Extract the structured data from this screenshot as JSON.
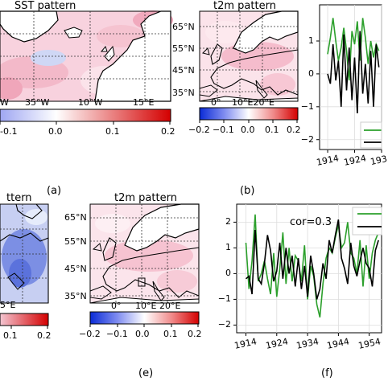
{
  "panels": {
    "a": {
      "title": "SST pattern",
      "lon_ticks": [
        "W",
        "35°W",
        "10°W",
        "15°E"
      ],
      "colorbar_ticks": [
        "-0.1",
        "0.0",
        "0.1",
        "0.2"
      ],
      "letter": "(a)"
    },
    "b": {
      "title": "t2m pattern",
      "lat_ticks": [
        "65°N",
        "55°N",
        "45°N",
        "35°N"
      ],
      "lon_ticks": [
        "0°",
        "10°E20°E"
      ],
      "colorbar_ticks": [
        "−0.2",
        "−0.1",
        "0.0",
        "0.1",
        "0.2"
      ],
      "letter": "(b)"
    },
    "c": {
      "y_ticks": [
        "1",
        "0",
        "−1",
        "−2"
      ],
      "x_ticks": [
        "1914",
        "1924",
        "193"
      ]
    },
    "d": {
      "title": "ttern",
      "lon_ticks": [
        "5°E"
      ],
      "colorbar_ticks": [
        "0.1",
        "0.2"
      ]
    },
    "e": {
      "title": "t2m pattern",
      "lat_ticks": [
        "65°N",
        "55°N",
        "45°N",
        "35°N"
      ],
      "lon_ticks": [
        "0°",
        "10°E 20°E"
      ],
      "colorbar_ticks": [
        "−0.2",
        "−0.1",
        "0.0",
        "0.1",
        "0.2"
      ],
      "letter": "(e)"
    },
    "f": {
      "annotation": "cor=0.3",
      "y_ticks": [
        "2",
        "1",
        "0",
        "−1",
        "−2"
      ],
      "x_ticks": [
        "1914",
        "1924",
        "1934",
        "1944",
        "1954"
      ],
      "letter": "(f)"
    }
  },
  "colors": {
    "series_green": "#2ca02c",
    "series_black": "#000000"
  },
  "chart_data": [
    {
      "type": "line",
      "panel": "c",
      "x": [
        1914,
        1915,
        1916,
        1917,
        1918,
        1919,
        1920,
        1921,
        1922,
        1923,
        1924,
        1925,
        1926,
        1927,
        1928,
        1929,
        1930,
        1931,
        1932,
        1933
      ],
      "xlim": [
        1911,
        1934
      ],
      "ylim": [
        -2.3,
        2.1
      ],
      "series": [
        {
          "color": "#2ca02c",
          "values": [
            0.6,
            1.1,
            1.7,
            1.0,
            0.4,
            0.8,
            1.4,
            0.7,
            -0.2,
            1.3,
            0.9,
            1.6,
            0.4,
            1.7,
            1.1,
            0.3,
            1.0,
            0.5,
            0.9,
            0.7
          ]
        },
        {
          "color": "#000000",
          "values": [
            0.0,
            -0.3,
            0.9,
            -0.2,
            0.4,
            -1.0,
            1.2,
            -0.5,
            0.8,
            -0.8,
            0.5,
            -1.2,
            1.3,
            -0.6,
            0.3,
            -0.9,
            0.7,
            -1.0,
            0.9,
            0.2
          ]
        }
      ]
    },
    {
      "type": "line",
      "panel": "f",
      "x": [
        1914,
        1915,
        1916,
        1917,
        1918,
        1919,
        1920,
        1921,
        1922,
        1923,
        1924,
        1925,
        1926,
        1927,
        1928,
        1929,
        1930,
        1931,
        1932,
        1933,
        1934,
        1935,
        1936,
        1937,
        1938,
        1939,
        1940,
        1941,
        1942,
        1943,
        1944,
        1945,
        1946,
        1947,
        1948,
        1949,
        1950,
        1951,
        1952,
        1953,
        1954,
        1955,
        1956,
        1957
      ],
      "xlim": [
        1911,
        1958
      ],
      "ylim": [
        -2.3,
        2.7
      ],
      "series": [
        {
          "color": "#2ca02c",
          "values": [
            1.2,
            -0.6,
            0.5,
            2.3,
            -0.3,
            0.0,
            0.5,
            -0.2,
            -0.8,
            0.8,
            -0.9,
            0.2,
            1.6,
            -0.4,
            1.0,
            -0.3,
            0.7,
            0.5,
            -0.3,
            1.1,
            -1.0,
            0.3,
            -0.1,
            -1.2,
            -1.7,
            -0.4,
            0.6,
            1.0,
            0.8,
            1.4,
            1.9,
            1.0,
            1.2,
            2.0,
            0.8,
            0.6,
            0.0,
            1.3,
            -0.5,
            1.1,
            -0.2,
            0.8,
            1.3,
            1.6
          ]
        },
        {
          "color": "#000000",
          "values": [
            -0.2,
            -0.1,
            -0.8,
            1.7,
            -0.2,
            -0.4,
            0.4,
            1.5,
            0.9,
            -0.3,
            0.1,
            1.2,
            -0.2,
            1.0,
            0.0,
            0.7,
            -0.5,
            0.6,
            -0.6,
            0.3,
            -0.9,
            0.7,
            0.0,
            -1.0,
            -0.6,
            0.4,
            -0.2,
            1.3,
            0.8,
            1.5,
            2.1,
            0.6,
            0.2,
            -0.4,
            1.2,
            0.3,
            -0.1,
            0.5,
            1.0,
            0.4,
            0.2,
            -0.5,
            0.9,
            1.3
          ]
        }
      ]
    }
  ]
}
